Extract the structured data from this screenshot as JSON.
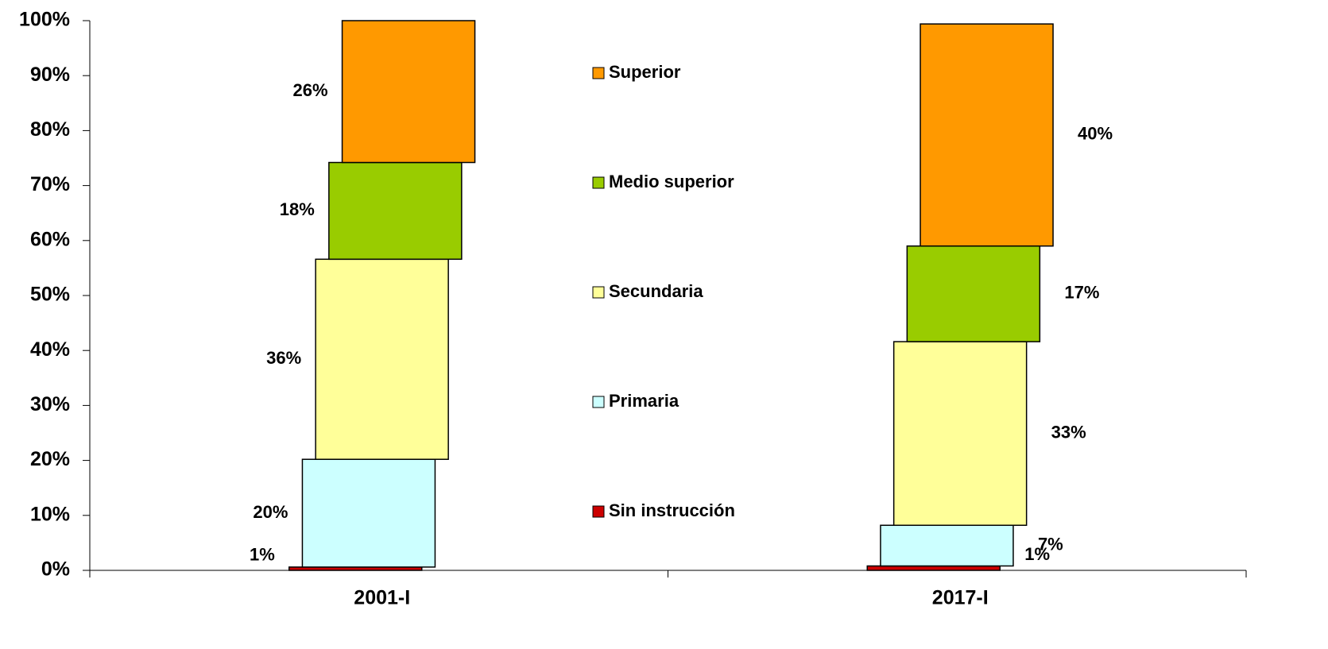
{
  "chart_data": {
    "type": "stacked-bar",
    "categories": [
      "2001-I",
      "2017-I"
    ],
    "series": [
      {
        "name": "Sin instrucción",
        "color": "#cc0000",
        "values": [
          0.6,
          0.8
        ],
        "value_labels": [
          "1%",
          "1%"
        ]
      },
      {
        "name": "Primaria",
        "color": "#ccffff",
        "values": [
          19.6,
          7.4
        ],
        "value_labels": [
          "20%",
          "7%"
        ]
      },
      {
        "name": "Secundaria",
        "color": "#ffff99",
        "values": [
          36.4,
          33.4
        ],
        "value_labels": [
          "36%",
          "33%"
        ]
      },
      {
        "name": "Medio superior",
        "color": "#99cc00",
        "values": [
          17.6,
          17.4
        ],
        "value_labels": [
          "18%",
          "17%"
        ]
      },
      {
        "name": "Superior",
        "color": "#ff9900",
        "values": [
          25.8,
          40.4
        ],
        "value_labels": [
          "26%",
          "40%"
        ]
      }
    ],
    "ylim": [
      0,
      100
    ],
    "yticks": [
      {
        "value": 0,
        "label": "0%"
      },
      {
        "value": 10,
        "label": "10%"
      },
      {
        "value": 20,
        "label": "20%"
      },
      {
        "value": 30,
        "label": "30%"
      },
      {
        "value": 40,
        "label": "40%"
      },
      {
        "value": 50,
        "label": "50%"
      },
      {
        "value": 60,
        "label": "60%"
      },
      {
        "value": 70,
        "label": "70%"
      },
      {
        "value": 80,
        "label": "80%"
      },
      {
        "value": 90,
        "label": "90%"
      },
      {
        "value": 100,
        "label": "100%"
      }
    ],
    "grid": false
  }
}
